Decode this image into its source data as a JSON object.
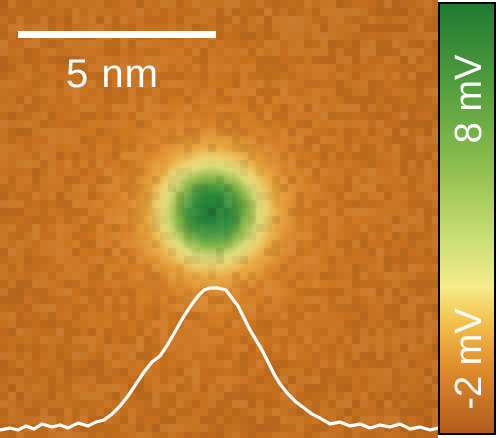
{
  "scale_bar": {
    "label": "5 nm"
  },
  "colorbar": {
    "max_label": "8 mV",
    "min_label": "-2 mV"
  }
}
